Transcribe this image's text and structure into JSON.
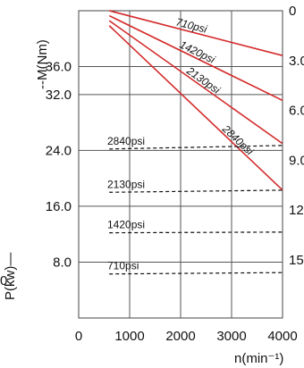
{
  "chart_data": {
    "type": "line",
    "xlabel": "n(min⁻¹)",
    "ylabel_left": "P(kw)—",
    "ylabel_right": "--M(Nm)",
    "x_ticks": [
      "0",
      "1000",
      "2000",
      "3000",
      "4000"
    ],
    "xlim": [
      0,
      4000
    ],
    "left_axis": {
      "ticks": [
        "8.0",
        "16.0",
        "24.0",
        "32.0",
        "36.0"
      ],
      "tick_values": [
        8,
        16,
        24,
        32,
        36
      ],
      "lim": [
        0,
        44
      ],
      "edge_label": "0"
    },
    "right_axis": {
      "ticks": [
        "0",
        "3.0",
        "6.0",
        "9.0",
        "12",
        "15"
      ],
      "tick_values": [
        0,
        3,
        6,
        9,
        12,
        15
      ],
      "lim": [
        0,
        18.5
      ]
    },
    "torque_series": [
      {
        "name": "710psi",
        "style": "solid",
        "color": "#d42a2a",
        "x": [
          600,
          4000
        ],
        "y": [
          0,
          2.7
        ]
      },
      {
        "name": "1420psi",
        "style": "solid",
        "color": "#d42a2a",
        "x": [
          600,
          4000
        ],
        "y": [
          0.3,
          5.4
        ]
      },
      {
        "name": "2130psi",
        "style": "solid",
        "color": "#d42a2a",
        "x": [
          600,
          4000
        ],
        "y": [
          0.6,
          8.0
        ]
      },
      {
        "name": "2840psi",
        "style": "solid",
        "color": "#d42a2a",
        "x": [
          600,
          4000
        ],
        "y": [
          0.9,
          10.8
        ]
      }
    ],
    "power_series": [
      {
        "name": "2840psi",
        "style": "dashed",
        "color": "#111111",
        "x": [
          600,
          4000
        ],
        "y": [
          24.2,
          24.7
        ]
      },
      {
        "name": "2130psi",
        "style": "dashed",
        "color": "#111111",
        "x": [
          600,
          4000
        ],
        "y": [
          18.0,
          18.3
        ]
      },
      {
        "name": "1420psi",
        "style": "dashed",
        "color": "#111111",
        "x": [
          600,
          4000
        ],
        "y": [
          12.2,
          12.3
        ]
      },
      {
        "name": "710psi",
        "style": "dashed",
        "color": "#111111",
        "x": [
          600,
          4000
        ],
        "y": [
          6.3,
          6.5
        ]
      }
    ],
    "grid": true
  }
}
